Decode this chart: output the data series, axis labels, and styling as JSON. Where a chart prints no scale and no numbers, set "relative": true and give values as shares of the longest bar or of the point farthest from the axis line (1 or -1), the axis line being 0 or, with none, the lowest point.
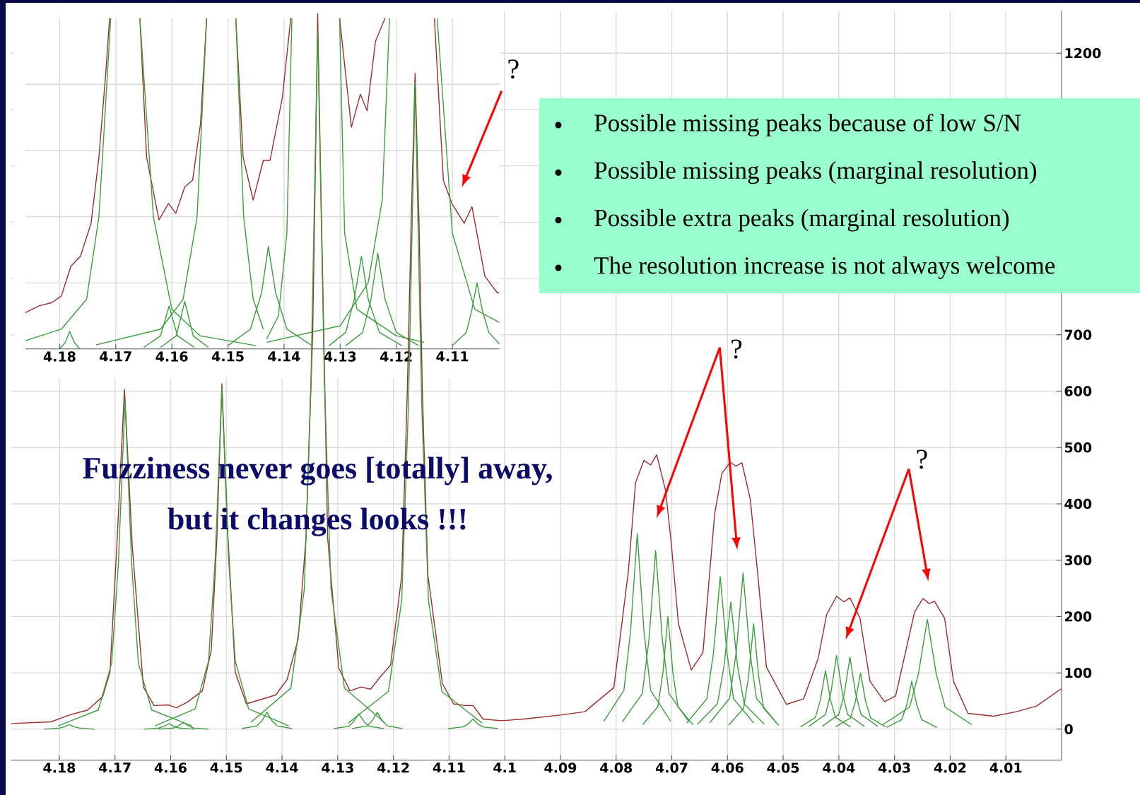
{
  "chart_data": [
    {
      "type": "line",
      "xlim": [
        4.1887,
        4.0
      ],
      "ylim": [
        -55,
        1275
      ],
      "xticks": [
        4.18,
        4.17,
        4.16,
        4.15,
        4.14,
        4.13,
        4.12,
        4.11,
        4.1,
        4.09,
        4.08,
        4.07,
        4.06,
        4.05,
        4.04,
        4.03,
        4.02,
        4.01
      ],
      "yticks": [
        0,
        100,
        200,
        300,
        400,
        500,
        600,
        700,
        {
          "value": 800,
          "label": null
        },
        {
          "value": 900,
          "label": null
        },
        {
          "value": 1000,
          "label": null
        },
        {
          "value": 1100,
          "label": null
        },
        1200
      ],
      "grid": true,
      "series": [
        {
          "color": "#9b2d2d",
          "x": [
            4.1887,
            4.1815,
            4.1782,
            4.1749,
            4.1722,
            4.1709,
            4.1696,
            4.1683,
            4.1669,
            4.1649,
            4.163,
            4.1603,
            4.159,
            4.157,
            4.1543,
            4.1527,
            4.1517,
            4.1508,
            4.1497,
            4.1484,
            4.1464,
            4.143,
            4.1411,
            4.1391,
            4.1371,
            4.1357,
            4.1345,
            4.134,
            4.1336,
            4.1331,
            4.1325,
            4.1318,
            4.1298,
            4.1278,
            4.1258,
            4.1241,
            4.1225,
            4.1205,
            4.1185,
            4.1175,
            4.1168,
            4.1161,
            4.1154,
            4.1148,
            4.1138,
            4.1112,
            4.1092,
            4.1072,
            4.1057,
            4.1039,
            4.1006,
            4.0966,
            4.09,
            4.0856,
            4.0804,
            4.0778,
            4.0765,
            4.075,
            4.0738,
            4.0727,
            4.0711,
            4.0701,
            4.0688,
            4.0665,
            4.0644,
            4.0623,
            4.061,
            4.0595,
            4.0585,
            4.0574,
            4.0559,
            4.0546,
            4.053,
            4.0494,
            4.0463,
            4.0437,
            4.0422,
            4.0404,
            4.0391,
            4.038,
            4.0362,
            4.0344,
            4.0318,
            4.0298,
            4.0277,
            4.0264,
            4.0249,
            4.0238,
            4.0228,
            4.021,
            4.0194,
            4.0168,
            4.0122,
            4.0081,
            4.0045,
            4.0
          ],
          "values": [
            10,
            13,
            25,
            34,
            58,
            101,
            339,
            603,
            325,
            75,
            42,
            43,
            38,
            48,
            68,
            141,
            339,
            613,
            339,
            101,
            45,
            55,
            61,
            88,
            160,
            339,
            700,
            1000,
            1270,
            1000,
            700,
            339,
            108,
            68,
            75,
            71,
            91,
            114,
            273,
            600,
            900,
            1164,
            900,
            600,
            273,
            81,
            45,
            42,
            42,
            18,
            15,
            18,
            25,
            31,
            74,
            280,
            438,
            477,
            469,
            487,
            423,
            331,
            187,
            105,
            136,
            382,
            454,
            474,
            467,
            473,
            408,
            279,
            110,
            44,
            54,
            126,
            203,
            236,
            226,
            233,
            197,
            85,
            49,
            59,
            151,
            208,
            232,
            223,
            227,
            197,
            85,
            28,
            23,
            31,
            41,
            72
          ]
        },
        {
          "color": "#3c9e3c",
          "x": [
            4.1802,
            4.173,
            4.1706,
            4.1694,
            4.1682,
            4.167,
            4.1658,
            4.1634,
            4.1562
          ],
          "values": [
            6,
            34,
            117,
            292,
            585,
            292,
            117,
            34,
            6
          ]
        },
        {
          "color": "#3c9e3c",
          "x": [
            4.1628,
            4.1556,
            4.1532,
            4.152,
            4.1508,
            4.1496,
            4.1484,
            4.146,
            4.1388
          ],
          "values": [
            6,
            36,
            121,
            302,
            605,
            302,
            121,
            36,
            6
          ]
        },
        {
          "color": "#3c9e3c",
          "x": [
            4.1456,
            4.1384,
            4.136,
            4.1348,
            4.1336,
            4.1324,
            4.1312,
            4.1288,
            4.1216
          ],
          "values": [
            12,
            73,
            248,
            620,
            1240,
            620,
            248,
            73,
            12
          ]
        },
        {
          "color": "#3c9e3c",
          "x": [
            4.1281,
            4.1209,
            4.1185,
            4.1173,
            4.1161,
            4.1149,
            4.1137,
            4.1113,
            4.1041
          ],
          "values": [
            11,
            67,
            229,
            573,
            1146,
            573,
            229,
            67,
            11
          ]
        },
        {
          "color": "#3c9e3c",
          "x": [
            4.1827,
            4.18,
            4.1791,
            4.1782,
            4.1773,
            4.1764,
            4.1737
          ],
          "values": [
            0,
            2,
            4,
            8,
            4,
            2,
            0
          ]
        },
        {
          "color": "#3c9e3c",
          "x": [
            4.1648,
            4.1621,
            4.1612,
            4.1603,
            4.1594,
            4.1585,
            4.1558
          ],
          "values": [
            0,
            2,
            5,
            10,
            5,
            2,
            0
          ]
        },
        {
          "color": "#3c9e3c",
          "x": [
            4.1622,
            4.1595,
            4.1586,
            4.1577,
            4.1568,
            4.1559,
            4.1532
          ],
          "values": [
            0,
            2,
            6,
            12,
            6,
            2,
            0
          ]
        },
        {
          "color": "#3c9e3c",
          "x": [
            4.1472,
            4.1445,
            4.1436,
            4.1427,
            4.1418,
            4.1409,
            4.1382
          ],
          "values": [
            1,
            6,
            15,
            30,
            15,
            6,
            1
          ]
        },
        {
          "color": "#3c9e3c",
          "x": [
            4.1307,
            4.128,
            4.1271,
            4.1262,
            4.1253,
            4.1244,
            4.1217
          ],
          "values": [
            1,
            5,
            14,
            27,
            14,
            5,
            1
          ]
        },
        {
          "color": "#3c9e3c",
          "x": [
            4.1274,
            4.1247,
            4.1238,
            4.1229,
            4.122,
            4.1211,
            4.1184
          ],
          "values": [
            1,
            6,
            15,
            30,
            15,
            6,
            1
          ]
        },
        {
          "color": "#3c9e3c",
          "x": [
            4.1102,
            4.1075,
            4.1066,
            4.1057,
            4.1048,
            4.1039,
            4.1012
          ],
          "values": [
            1,
            4,
            9,
            18,
            9,
            4,
            1
          ]
        },
        {
          "color": "#3c9e3c",
          "x": [
            4.0822,
            4.0786,
            4.0774,
            4.0762,
            4.075,
            4.0738,
            4.0702
          ],
          "values": [
            14,
            69,
            174,
            347,
            174,
            69,
            14
          ]
        },
        {
          "color": "#3c9e3c",
          "x": [
            4.0789,
            4.0753,
            4.0741,
            4.0729,
            4.0717,
            4.0705,
            4.0669
          ],
          "values": [
            13,
            63,
            159,
            317,
            159,
            63,
            13
          ]
        },
        {
          "color": "#3c9e3c",
          "x": [
            4.0752,
            4.0725,
            4.0716,
            4.0707,
            4.0698,
            4.0689,
            4.0662
          ],
          "values": [
            8,
            40,
            100,
            200,
            100,
            40,
            8
          ]
        },
        {
          "color": "#3c9e3c",
          "x": [
            4.0673,
            4.0637,
            4.0625,
            4.0613,
            4.0601,
            4.0589,
            4.0553
          ],
          "values": [
            11,
            54,
            136,
            271,
            136,
            54,
            11
          ]
        },
        {
          "color": "#3c9e3c",
          "x": [
            4.0654,
            4.0618,
            4.0606,
            4.0594,
            4.0582,
            4.057,
            4.0534
          ],
          "values": [
            9,
            45,
            113,
            226,
            113,
            45,
            9
          ]
        },
        {
          "color": "#3c9e3c",
          "x": [
            4.0632,
            4.0596,
            4.0584,
            4.0572,
            4.056,
            4.0548,
            4.0512
          ],
          "values": [
            11,
            55,
            139,
            277,
            139,
            55,
            11
          ]
        },
        {
          "color": "#3c9e3c",
          "x": [
            4.0598,
            4.0571,
            4.0562,
            4.0553,
            4.0544,
            4.0535,
            4.0508
          ],
          "values": [
            7,
            37,
            94,
            187,
            94,
            37,
            7
          ]
        },
        {
          "color": "#3c9e3c",
          "x": [
            4.0469,
            4.0442,
            4.0433,
            4.0424,
            4.0415,
            4.0406,
            4.0379
          ],
          "values": [
            4,
            21,
            52,
            104,
            52,
            21,
            4
          ]
        },
        {
          "color": "#3c9e3c",
          "x": [
            4.0454,
            4.0424,
            4.0414,
            4.0404,
            4.0394,
            4.0384,
            4.0354
          ],
          "values": [
            5,
            26,
            66,
            131,
            66,
            26,
            5
          ]
        },
        {
          "color": "#3c9e3c",
          "x": [
            4.043,
            4.04,
            4.039,
            4.038,
            4.037,
            4.036,
            4.033
          ],
          "values": [
            5,
            26,
            64,
            128,
            64,
            26,
            5
          ]
        },
        {
          "color": "#3c9e3c",
          "x": [
            4.0406,
            4.0379,
            4.037,
            4.0361,
            4.0352,
            4.0343,
            4.0316
          ],
          "values": [
            4,
            20,
            50,
            100,
            50,
            20,
            4
          ]
        },
        {
          "color": "#3c9e3c",
          "x": [
            4.0314,
            4.0287,
            4.0278,
            4.0269,
            4.026,
            4.0251,
            4.0224
          ],
          "values": [
            3,
            17,
            43,
            85,
            43,
            17,
            3
          ]
        },
        {
          "color": "#3c9e3c",
          "x": [
            4.0321,
            4.0273,
            4.0257,
            4.0241,
            4.0225,
            4.0209,
            4.0161
          ],
          "values": [
            8,
            39,
            98,
            195,
            98,
            39,
            8
          ]
        }
      ],
      "annotations": [
        "?",
        "?",
        "Fuzziness never goes [totally] away,",
        "but it changes looks !!!",
        "Possible missing peaks because of low S/N",
        "Possible missing peaks (marginal resolution)",
        "Possible extra peaks (marginal resolution)",
        "The resolution increase is not always welcome"
      ]
    },
    {
      "type": "line",
      "relative": true,
      "xlim": [
        4.1861,
        4.1016
      ],
      "xticks": [
        4.18,
        4.17,
        4.16,
        4.15,
        4.14,
        4.13,
        4.12,
        4.11
      ],
      "grid": true,
      "series": [
        {
          "color": "#9b2d2d",
          "x": [
            4.1861,
            4.1837,
            4.1814,
            4.1797,
            4.178,
            4.1763,
            4.1744,
            4.173,
            4.1718,
            4.1711,
            4.169,
            4.1657,
            4.1645,
            4.1623,
            4.1606,
            4.1593,
            4.1577,
            4.1563,
            4.1549,
            4.1538,
            4.151,
            4.1486,
            4.1473,
            4.1455,
            4.1437,
            4.1425,
            4.1403,
            4.1388,
            4.134,
            4.1301,
            4.128,
            4.1264,
            4.1252,
            4.1237,
            4.122,
            4.118,
            4.1132,
            4.1116,
            4.1101,
            4.1079,
            4.1065,
            4.1042,
            4.102,
            4.1016
          ],
          "values": [
            0.11,
            0.13,
            0.14,
            0.16,
            0.25,
            0.28,
            0.38,
            0.58,
            0.83,
            1.0,
            null,
            1.0,
            0.58,
            0.39,
            0.44,
            0.41,
            0.49,
            0.51,
            0.68,
            1.0,
            null,
            1.0,
            0.58,
            0.45,
            0.57,
            0.57,
            0.76,
            1.0,
            null,
            1.0,
            0.67,
            0.77,
            0.72,
            0.93,
            1.0,
            null,
            1.0,
            0.51,
            0.44,
            0.38,
            0.43,
            0.22,
            0.17,
            0.17
          ]
        },
        {
          "color": "#3c9e3c",
          "x": [
            4.1861,
            4.1797,
            4.1752,
            4.173,
            4.1709,
            4.169,
            4.1657,
            4.1633,
            4.16,
            4.155,
            4.145
          ],
          "values": [
            0.025,
            0.06,
            0.15,
            0.4,
            1.0,
            null,
            1.0,
            0.4,
            0.12,
            0.04,
            0.01
          ]
        },
        {
          "color": "#3c9e3c",
          "x": [
            4.1735,
            4.162,
            4.158,
            4.1555,
            4.1538,
            4.151,
            4.1486,
            4.1472,
            4.1455,
            4.1437
          ],
          "values": [
            0.012,
            0.06,
            0.15,
            0.4,
            1.0,
            null,
            1.0,
            0.4,
            0.15,
            0.06
          ]
        },
        {
          "color": "#3c9e3c",
          "x": [
            4.1431,
            4.141,
            4.1395,
            4.1386,
            4.134,
            4.1301,
            4.1292,
            4.127,
            4.12,
            4.115
          ],
          "values": [
            0.03,
            0.1,
            0.35,
            1.0,
            null,
            1.0,
            0.35,
            0.12,
            0.04,
            0.02
          ]
        },
        {
          "color": "#3c9e3c",
          "x": [
            4.1431,
            4.13,
            4.125,
            4.1225,
            4.1212,
            4.117,
            4.1127,
            4.11,
            4.106,
            4.1016
          ],
          "values": [
            0.02,
            0.07,
            0.2,
            0.45,
            1.0,
            null,
            1.0,
            0.35,
            0.12,
            0.08
          ]
        },
        {
          "color": "#3c9e3c",
          "x": [
            4.18,
            4.179,
            4.1782,
            4.1774,
            4.1764
          ],
          "values": [
            0,
            0.02,
            0.053,
            0.02,
            0
          ]
        },
        {
          "color": "#3c9e3c",
          "x": [
            4.165,
            4.162,
            4.1605,
            4.159,
            4.156
          ],
          "values": [
            0.005,
            0.04,
            0.13,
            0.04,
            0.005
          ]
        },
        {
          "color": "#3c9e3c",
          "x": [
            4.162,
            4.1592,
            4.1577,
            4.1562,
            4.1535
          ],
          "values": [
            0.005,
            0.04,
            0.144,
            0.04,
            0.005
          ]
        },
        {
          "color": "#3c9e3c",
          "x": [
            4.15,
            4.146,
            4.144,
            4.1428,
            4.1415,
            4.1395,
            4.135
          ],
          "values": [
            0.01,
            0.06,
            0.17,
            0.31,
            0.17,
            0.06,
            0.01
          ]
        },
        {
          "color": "#3c9e3c",
          "x": [
            4.132,
            4.129,
            4.1275,
            4.1262,
            4.125,
            4.123,
            4.119
          ],
          "values": [
            0.01,
            0.05,
            0.15,
            0.28,
            0.15,
            0.05,
            0.01
          ]
        },
        {
          "color": "#3c9e3c",
          "x": [
            4.129,
            4.126,
            4.1245,
            4.1233,
            4.122,
            4.12,
            4.116
          ],
          "values": [
            0.01,
            0.05,
            0.15,
            0.29,
            0.15,
            0.05,
            0.01
          ]
        },
        {
          "color": "#3c9e3c",
          "x": [
            4.11,
            4.1075,
            4.1065,
            4.1056,
            4.1047,
            4.1035,
            4.1016
          ],
          "values": [
            0.01,
            0.05,
            0.12,
            0.2,
            0.12,
            0.05,
            0.015
          ]
        }
      ],
      "annotations": [
        "?"
      ]
    }
  ]
}
